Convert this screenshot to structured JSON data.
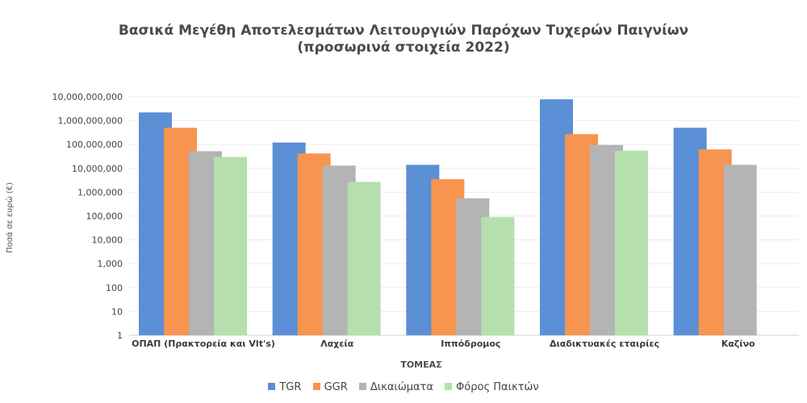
{
  "chart_data": {
    "type": "bar",
    "title": "Βασικά Μεγέθη Αποτελεσμάτων Λειτουργιών Παρόχων Τυχερών Παιγνίων",
    "subtitle": "(προσωρινά στοιχεία 2022)",
    "xlabel": "ΤΟΜΕΑΣ",
    "ylabel": "Ποσά σε ευρώ (€)",
    "yscale": "log",
    "ylim": [
      1,
      10000000000
    ],
    "yticks": [
      "1",
      "10",
      "100",
      "1,000",
      "10,000",
      "100,000",
      "1,000,000",
      "10,000,000",
      "100,000,000",
      "1,000,000,000",
      "10,000,000,000"
    ],
    "categories": [
      "ΟΠΑΠ  (Πρακτορεία  και  Vlt's)",
      "Λαχεία",
      "Ιππόδρομος",
      "Διαδικτυακές  εταιρίες",
      "Καζίνο"
    ],
    "series": [
      {
        "name": "TGR",
        "color": "#5b8fd6",
        "values": [
          2200000000,
          120000000,
          14000000,
          7800000000,
          500000000
        ]
      },
      {
        "name": "GGR",
        "color": "#f7944f",
        "values": [
          500000000,
          42000000,
          3500000,
          270000000,
          62000000
        ]
      },
      {
        "name": "Δικαιώματα",
        "color": "#b4b4b4",
        "values": [
          52000000,
          13000000,
          550000,
          95000000,
          14000000
        ]
      },
      {
        "name": "Φόρος Παικτών",
        "color": "#b6dfae",
        "values": [
          30000000,
          2700000,
          90000,
          55000000,
          null
        ]
      }
    ],
    "grid": true,
    "legend_position": "bottom"
  }
}
